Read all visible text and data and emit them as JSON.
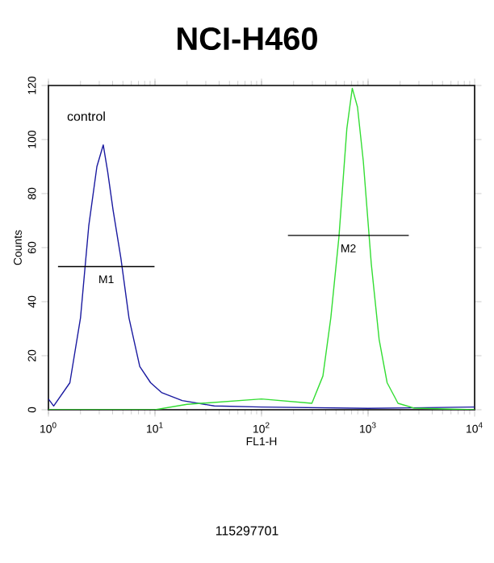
{
  "chart_data": {
    "type": "line",
    "title": "NCI-H460",
    "xlabel": "FL1-H",
    "ylabel": "Counts",
    "log": "x",
    "xlim": [
      1,
      10000
    ],
    "ylim": [
      0,
      120
    ],
    "xticks": [
      {
        "value": 1,
        "label": "10$^{0}$"
      },
      {
        "value": 10,
        "label": "10$^{1}$"
      },
      {
        "value": 100,
        "label": "10$^{2}$"
      },
      {
        "value": 1000,
        "label": "10$^{3}$"
      },
      {
        "value": 10000,
        "label": "10$^{4}$"
      }
    ],
    "yticks": [
      0,
      20,
      40,
      60,
      80,
      100,
      120
    ],
    "series": [
      {
        "color": "#1a1aa0",
        "x": [
          1.0,
          1.12,
          1.59,
          2.0,
          2.39,
          2.85,
          3.27,
          3.6,
          4.04,
          4.79,
          5.7,
          7.2,
          9.1,
          11.5,
          18,
          36,
          100,
          1000,
          10000
        ],
        "values": [
          4,
          1.4,
          10,
          34,
          68,
          90,
          98,
          88,
          74,
          56,
          34,
          16,
          10,
          6.4,
          3.4,
          1.4,
          1,
          0.5,
          1
        ]
      },
      {
        "color": "#33dd33",
        "x": [
          1,
          10,
          20,
          100,
          297,
          377,
          447,
          533,
          632,
          711,
          796,
          902,
          1072,
          1270,
          1510,
          1910,
          2700,
          10000
        ],
        "values": [
          0,
          0,
          2,
          4,
          2.4,
          12.5,
          34,
          64,
          104,
          119,
          112,
          92,
          54,
          26,
          10,
          2.4,
          0.6,
          0
        ]
      },
      {
        "color": "#000000",
        "x": [
          1.23,
          9.9
        ],
        "values": [
          53,
          53
        ]
      },
      {
        "color": "#000000",
        "x": [
          177,
          2410
        ],
        "values": [
          64.5,
          64.5
        ]
      }
    ],
    "annotations": [
      "control",
      "M1",
      "M2",
      "115297701"
    ]
  }
}
